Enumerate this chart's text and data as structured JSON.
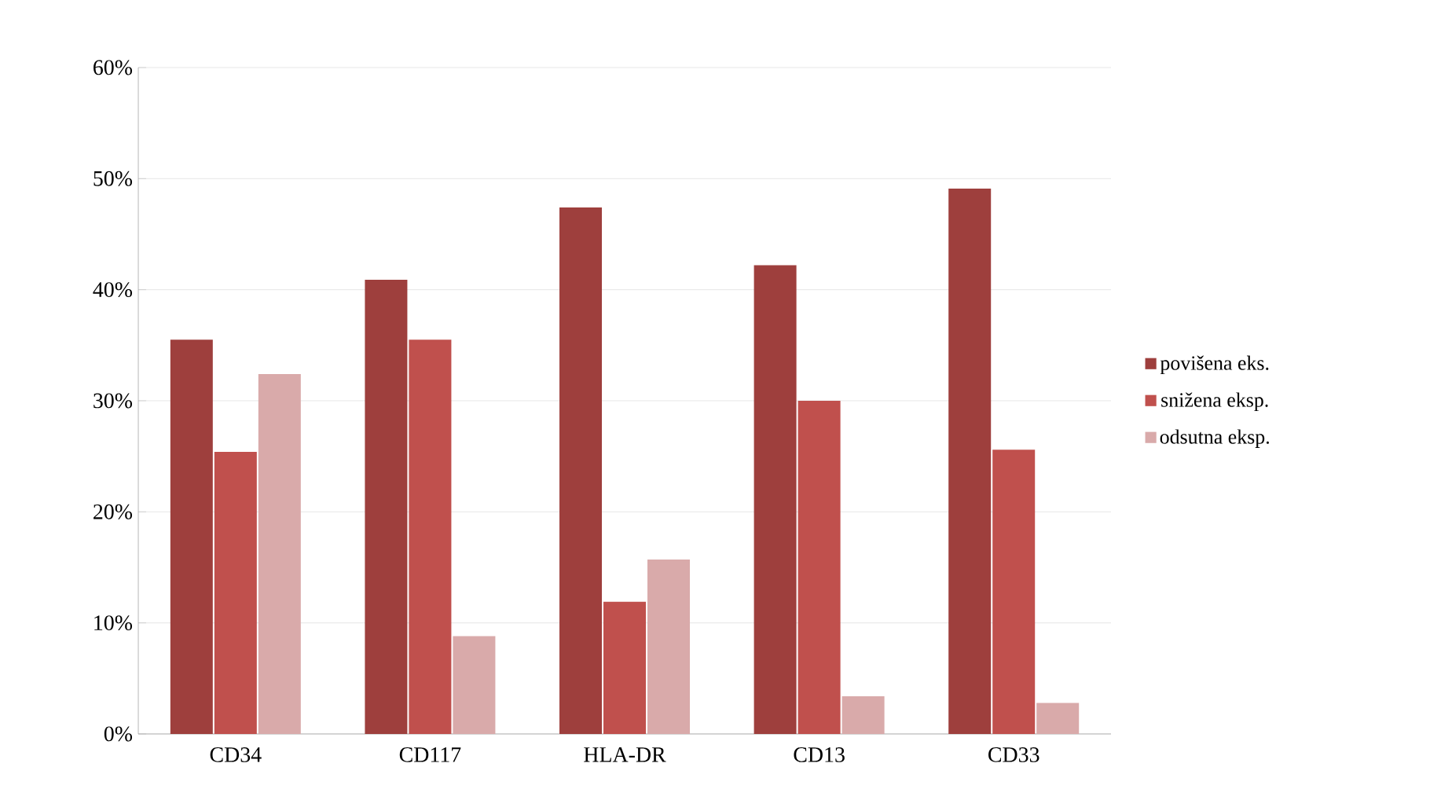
{
  "chart_data": {
    "type": "bar",
    "categories": [
      "CD34",
      "CD117",
      "HLA-DR",
      "CD13",
      "CD33"
    ],
    "series": [
      {
        "name": "povišena eks.",
        "color": "#9e3f3d",
        "values": [
          35.5,
          40.9,
          47.4,
          42.2,
          49.1
        ]
      },
      {
        "name": "snižena eksp.",
        "color": "#c0504d",
        "values": [
          25.4,
          35.5,
          11.9,
          30.0,
          25.6
        ]
      },
      {
        "name": "odsutna eksp.",
        "color": "#d9aaaa",
        "values": [
          32.4,
          8.8,
          15.7,
          3.4,
          2.8
        ]
      }
    ],
    "ylim": [
      0,
      60
    ],
    "yticks": [
      {
        "value": 0,
        "label": "0%"
      },
      {
        "value": 10,
        "label": "10%"
      },
      {
        "value": 20,
        "label": "20%"
      },
      {
        "value": 30,
        "label": "30%"
      },
      {
        "value": 40,
        "label": "40%"
      },
      {
        "value": 50,
        "label": "50%"
      },
      {
        "value": 60,
        "label": "60%"
      }
    ],
    "grid": "y",
    "legend": "right"
  }
}
